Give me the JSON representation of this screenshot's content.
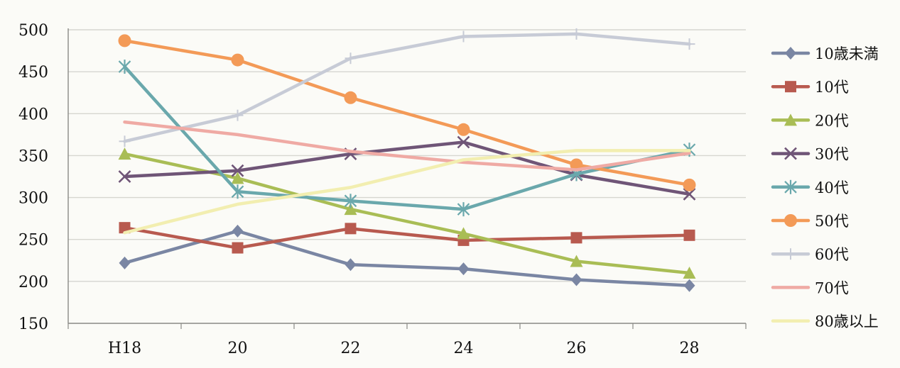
{
  "chart_data": {
    "type": "line",
    "categories": [
      "H18",
      "20",
      "22",
      "24",
      "26",
      "28"
    ],
    "ylim": [
      150,
      500
    ],
    "yticks": [
      150,
      200,
      250,
      300,
      350,
      400,
      450,
      500
    ],
    "grid": true,
    "legend_position": "right",
    "series": [
      {
        "name": "10歳未満",
        "color": "#7a86a3",
        "marker": "diamond",
        "values": [
          222,
          260,
          220,
          215,
          202,
          195
        ]
      },
      {
        "name": "10代",
        "color": "#b85a4f",
        "marker": "square",
        "values": [
          264,
          240,
          263,
          249,
          252,
          255
        ]
      },
      {
        "name": "20代",
        "color": "#a9bd55",
        "marker": "triangle",
        "values": [
          352,
          323,
          286,
          257,
          224,
          210
        ]
      },
      {
        "name": "30代",
        "color": "#6f5577",
        "marker": "x",
        "values": [
          325,
          332,
          352,
          366,
          327,
          304
        ]
      },
      {
        "name": "40代",
        "color": "#6aa8ac",
        "marker": "star",
        "values": [
          456,
          307,
          296,
          286,
          328,
          357
        ]
      },
      {
        "name": "50代",
        "color": "#f39a57",
        "marker": "circle",
        "values": [
          487,
          464,
          419,
          381,
          339,
          315
        ]
      },
      {
        "name": "60代",
        "color": "#c7cbd6",
        "marker": "plus",
        "values": [
          367,
          398,
          466,
          492,
          495,
          483
        ]
      },
      {
        "name": "70代",
        "color": "#efaaa4",
        "marker": "none",
        "values": [
          390,
          375,
          355,
          342,
          333,
          353
        ]
      },
      {
        "name": "80歳以上",
        "color": "#f2eeb0",
        "marker": "none",
        "values": [
          258,
          292,
          312,
          345,
          356,
          356
        ]
      }
    ]
  }
}
